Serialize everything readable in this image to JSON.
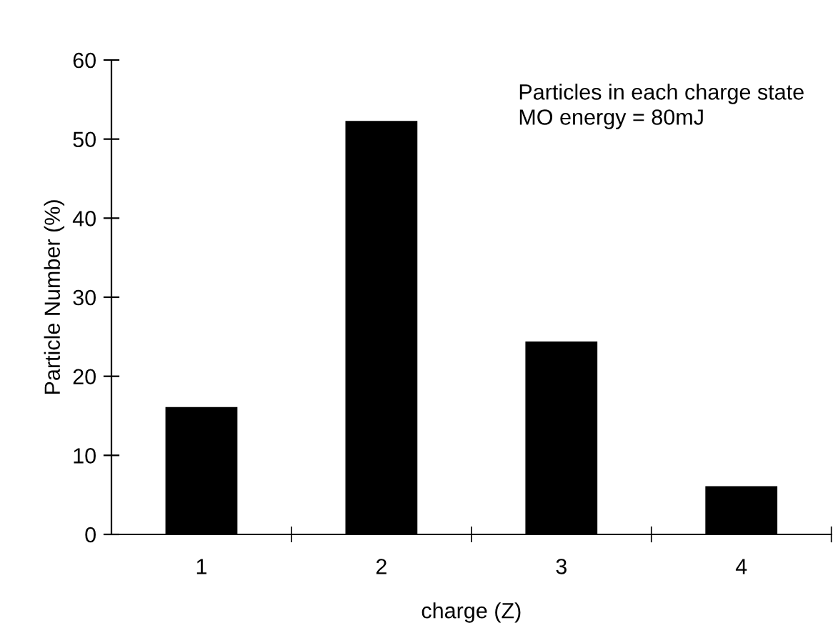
{
  "chart_data": {
    "type": "bar",
    "xlabel": "charge (Z)",
    "ylabel": "Particle Number (%)",
    "categories": [
      "1",
      "2",
      "3",
      "4"
    ],
    "values": [
      16.1,
      52.3,
      24.4,
      6.1
    ],
    "color": "#000000",
    "ylim": [
      0,
      60
    ],
    "yticks": [
      0,
      10,
      20,
      30,
      40,
      50,
      60
    ],
    "annotations": [
      "Particles in each charge state\nMO energy = 80mJ"
    ],
    "grid": false,
    "legend": false
  }
}
